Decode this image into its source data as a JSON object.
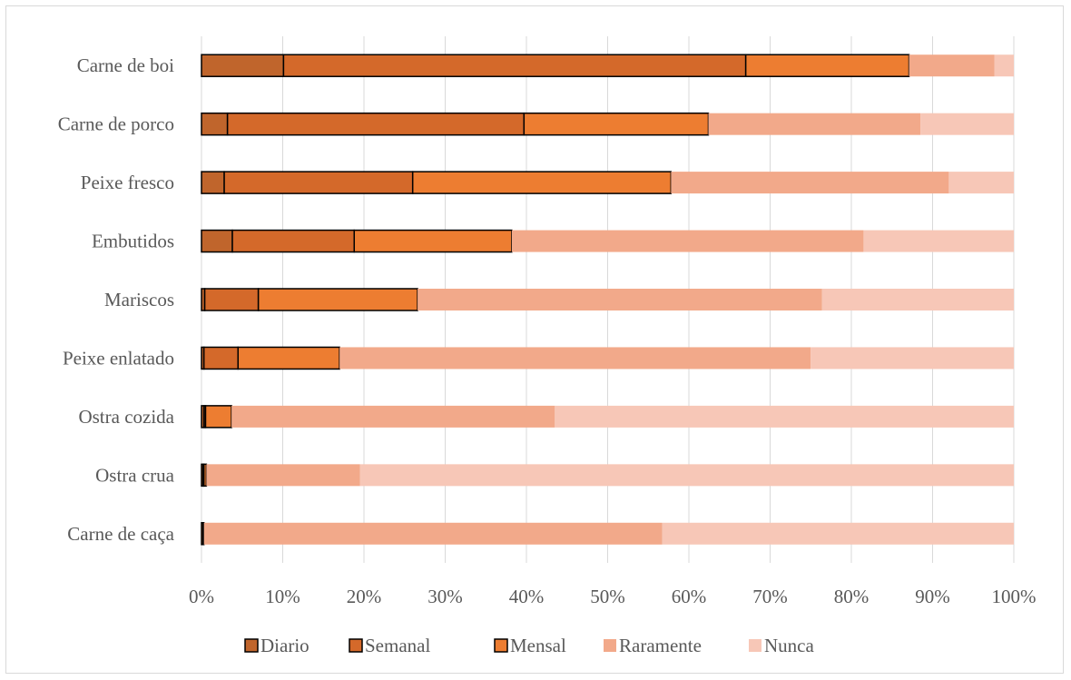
{
  "chart_data": {
    "type": "bar",
    "orientation": "horizontal",
    "stacked": "percent",
    "categories": [
      "Carne de boi",
      "Carne de porco",
      "Peixe fresco",
      "Embutidos",
      "Mariscos",
      "Peixe enlatado",
      "Ostra cozida",
      "Ostra crua",
      "Carne de caça"
    ],
    "series": [
      {
        "name": "Diario",
        "color": "#c0652c",
        "outlined": true,
        "values": [
          10.1,
          3.2,
          2.8,
          3.8,
          0.4,
          0.3,
          0.3,
          0.2,
          0.2
        ]
      },
      {
        "name": "Semanal",
        "color": "#d4692a",
        "outlined": true,
        "values": [
          56.9,
          36.5,
          23.2,
          15.0,
          6.6,
          4.2,
          0.2,
          0.1,
          0.1
        ]
      },
      {
        "name": "Mensal",
        "color": "#ed7d31",
        "outlined": true,
        "values": [
          20.1,
          22.7,
          31.8,
          19.4,
          19.6,
          12.5,
          3.2,
          0.3,
          0.0
        ]
      },
      {
        "name": "Raramente",
        "color": "#f2a98a",
        "outlined": false,
        "values": [
          10.5,
          26.1,
          34.2,
          43.3,
          49.8,
          58.0,
          39.8,
          18.9,
          56.4
        ]
      },
      {
        "name": "Nunca",
        "color": "#f7c7b7",
        "outlined": false,
        "values": [
          2.4,
          11.5,
          8.0,
          18.5,
          23.6,
          25.0,
          56.5,
          80.5,
          43.3
        ]
      }
    ],
    "x_ticks": [
      "0%",
      "10%",
      "20%",
      "30%",
      "40%",
      "50%",
      "60%",
      "70%",
      "80%",
      "90%",
      "100%"
    ],
    "xlim": [
      0,
      100
    ],
    "grid": "vertical",
    "legend": "bottom",
    "title": "",
    "xlabel": "",
    "ylabel": ""
  }
}
